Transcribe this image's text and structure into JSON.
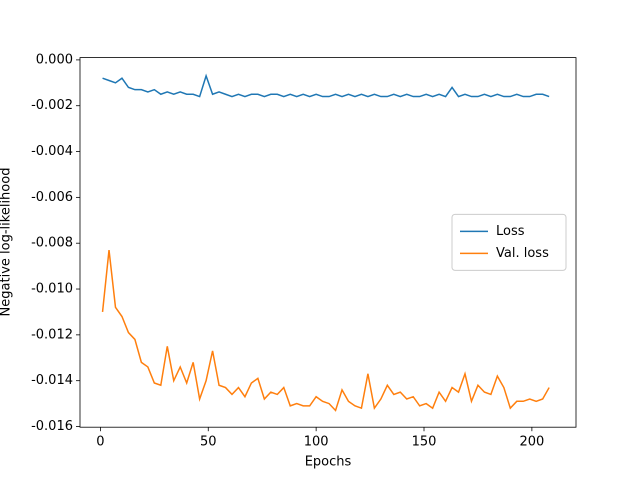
{
  "chart_data": {
    "type": "line",
    "xlabel": "Epochs",
    "ylabel": "Negative log-likelihood",
    "x": [
      1,
      4,
      7,
      10,
      13,
      16,
      19,
      22,
      25,
      28,
      31,
      34,
      37,
      40,
      43,
      46,
      49,
      52,
      55,
      58,
      61,
      64,
      67,
      70,
      73,
      76,
      79,
      82,
      85,
      88,
      91,
      94,
      97,
      100,
      103,
      106,
      109,
      112,
      115,
      118,
      121,
      124,
      127,
      130,
      133,
      136,
      139,
      142,
      145,
      148,
      151,
      154,
      157,
      160,
      163,
      166,
      169,
      172,
      175,
      178,
      181,
      184,
      187,
      190,
      193,
      196,
      199,
      202,
      205,
      208
    ],
    "series": [
      {
        "name": "Loss",
        "color": "#1f77b4",
        "values": [
          -0.0008,
          -0.0009,
          -0.001,
          -0.0008,
          -0.0012,
          -0.0013,
          -0.0013,
          -0.0014,
          -0.0013,
          -0.0015,
          -0.0014,
          -0.0015,
          -0.0014,
          -0.0015,
          -0.0015,
          -0.0016,
          -0.0007,
          -0.0015,
          -0.0014,
          -0.0015,
          -0.0016,
          -0.0015,
          -0.0016,
          -0.0015,
          -0.0015,
          -0.0016,
          -0.0015,
          -0.0015,
          -0.0016,
          -0.0015,
          -0.0016,
          -0.0015,
          -0.0016,
          -0.0015,
          -0.0016,
          -0.0016,
          -0.0015,
          -0.0016,
          -0.0015,
          -0.0016,
          -0.0015,
          -0.0016,
          -0.0015,
          -0.0016,
          -0.0016,
          -0.0015,
          -0.0016,
          -0.0015,
          -0.0016,
          -0.0016,
          -0.0015,
          -0.0016,
          -0.0015,
          -0.0016,
          -0.0012,
          -0.0016,
          -0.0015,
          -0.0016,
          -0.0016,
          -0.0015,
          -0.0016,
          -0.0015,
          -0.0016,
          -0.0016,
          -0.0015,
          -0.0016,
          -0.0016,
          -0.0015,
          -0.0015,
          -0.0016
        ]
      },
      {
        "name": "Val. loss",
        "color": "#ff7f0e",
        "values": [
          -0.011,
          -0.0083,
          -0.0108,
          -0.0112,
          -0.0119,
          -0.0122,
          -0.0132,
          -0.0134,
          -0.0141,
          -0.0142,
          -0.0125,
          -0.014,
          -0.0134,
          -0.0141,
          -0.0132,
          -0.0148,
          -0.014,
          -0.0127,
          -0.0142,
          -0.0143,
          -0.0146,
          -0.0143,
          -0.0147,
          -0.0141,
          -0.0139,
          -0.0148,
          -0.0145,
          -0.0146,
          -0.0143,
          -0.0151,
          -0.015,
          -0.0151,
          -0.0151,
          -0.0147,
          -0.0149,
          -0.015,
          -0.0153,
          -0.0144,
          -0.0149,
          -0.0151,
          -0.0152,
          -0.0137,
          -0.0152,
          -0.0148,
          -0.0142,
          -0.0146,
          -0.0145,
          -0.0148,
          -0.0147,
          -0.0151,
          -0.015,
          -0.0152,
          -0.0145,
          -0.0149,
          -0.0143,
          -0.0145,
          -0.0137,
          -0.0149,
          -0.0142,
          -0.0145,
          -0.0146,
          -0.0138,
          -0.0143,
          -0.0152,
          -0.0149,
          -0.0149,
          -0.0148,
          -0.0149,
          -0.0148,
          -0.0143
        ]
      }
    ],
    "xlim": [
      -9.45,
      220.45
    ],
    "xticks": [
      0,
      50,
      100,
      150,
      200
    ],
    "ylim": [
      -0.01603,
      0.0001
    ],
    "yticks": [
      {
        "value": 0,
        "label": "0.000"
      },
      {
        "value": -0.002,
        "label": "-0.002"
      },
      {
        "value": -0.004,
        "label": "-0.004"
      },
      {
        "value": -0.006,
        "label": "-0.006"
      },
      {
        "value": -0.008,
        "label": "-0.008"
      },
      {
        "value": -0.01,
        "label": "-0.010"
      },
      {
        "value": -0.012,
        "label": "-0.012"
      },
      {
        "value": -0.014,
        "label": "-0.014"
      },
      {
        "value": -0.016,
        "label": "-0.016"
      }
    ],
    "grid": false,
    "legend": "center right"
  }
}
